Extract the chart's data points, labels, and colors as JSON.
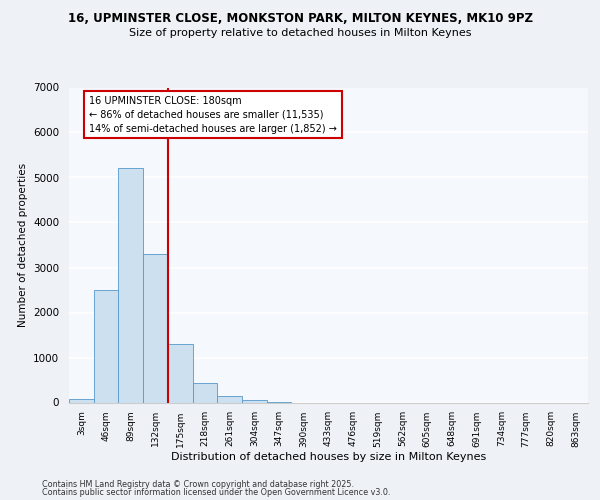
{
  "title_line1": "16, UPMINSTER CLOSE, MONKSTON PARK, MILTON KEYNES, MK10 9PZ",
  "title_line2": "Size of property relative to detached houses in Milton Keynes",
  "xlabel": "Distribution of detached houses by size in Milton Keynes",
  "ylabel": "Number of detached properties",
  "categories": [
    "3sqm",
    "46sqm",
    "89sqm",
    "132sqm",
    "175sqm",
    "218sqm",
    "261sqm",
    "304sqm",
    "347sqm",
    "390sqm",
    "433sqm",
    "476sqm",
    "519sqm",
    "562sqm",
    "605sqm",
    "648sqm",
    "691sqm",
    "734sqm",
    "777sqm",
    "820sqm",
    "863sqm"
  ],
  "values": [
    70,
    2500,
    5200,
    3300,
    1300,
    430,
    150,
    60,
    10,
    0,
    0,
    0,
    0,
    0,
    0,
    0,
    0,
    0,
    0,
    0,
    0
  ],
  "bar_color": "#cce0f0",
  "bar_edge_color": "#5599cc",
  "vline_color": "#cc0000",
  "annotation_text": "16 UPMINSTER CLOSE: 180sqm\n← 86% of detached houses are smaller (11,535)\n14% of semi-detached houses are larger (1,852) →",
  "annotation_box_color": "#cc0000",
  "ylim": [
    0,
    7000
  ],
  "yticks": [
    0,
    1000,
    2000,
    3000,
    4000,
    5000,
    6000,
    7000
  ],
  "footer_line1": "Contains HM Land Registry data © Crown copyright and database right 2025.",
  "footer_line2": "Contains public sector information licensed under the Open Government Licence v3.0.",
  "bg_color": "#eef2f7",
  "plot_bg_color": "#f5f8fc",
  "grid_color": "#ffffff",
  "spine_color": "#cccccc"
}
